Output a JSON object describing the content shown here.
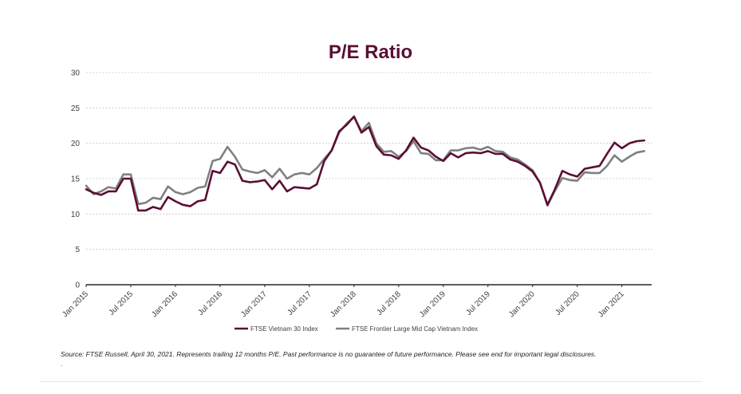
{
  "chart_data": {
    "type": "line",
    "title": "P/E Ratio",
    "xlabel": "",
    "ylabel": "",
    "ylim": [
      0,
      30
    ],
    "yticks": [
      "0",
      "5",
      "10",
      "15",
      "20",
      "25",
      "30"
    ],
    "xticks": [
      "Jan 2015",
      "Jul 2015",
      "Jan 2016",
      "Jul 2016",
      "Jan 2017",
      "Jul 2017",
      "Jan 2018",
      "Jul 2018",
      "Jan 2019",
      "Jul 2019",
      "Jan 2020",
      "Jul 2020",
      "Jan 2021"
    ],
    "grid": "horizontal dashed",
    "legend_position": "bottom",
    "x_start": "Jan 2015",
    "x_end": "Apr 2021",
    "x_frequency": "monthly",
    "series": [
      {
        "name": "FTSE Vietnam 30 Index",
        "color": "#5b0f34",
        "values": [
          13.5,
          13.0,
          12.7,
          13.2,
          13.2,
          15.0,
          15.0,
          10.5,
          10.5,
          11.0,
          10.7,
          12.4,
          11.8,
          11.3,
          11.1,
          11.8,
          12.0,
          16.1,
          15.8,
          17.4,
          17.0,
          14.7,
          14.5,
          14.6,
          14.8,
          13.5,
          14.7,
          13.2,
          13.8,
          13.7,
          13.6,
          14.2,
          17.5,
          19.0,
          21.7,
          22.6,
          23.8,
          21.5,
          22.3,
          19.6,
          18.4,
          18.3,
          17.8,
          19.0,
          20.8,
          19.4,
          19.0,
          18.1,
          17.5,
          18.6,
          18.0,
          18.6,
          18.7,
          18.6,
          18.9,
          18.5,
          18.5,
          17.7,
          17.4,
          16.8,
          16.0,
          14.4,
          11.3,
          13.5,
          16.1,
          15.6,
          15.3,
          16.4,
          16.6,
          16.8,
          18.5,
          20.1,
          19.3,
          20.0,
          20.3,
          20.4
        ]
      },
      {
        "name": "FTSE Frontier Large Mid Cap Vietnam Index",
        "color": "#808080",
        "values": [
          14.0,
          12.8,
          13.2,
          13.8,
          13.6,
          15.6,
          15.6,
          11.4,
          11.6,
          12.3,
          12.1,
          13.9,
          13.1,
          12.8,
          13.1,
          13.7,
          13.9,
          17.5,
          17.8,
          19.5,
          18.1,
          16.3,
          16.0,
          15.8,
          16.2,
          15.2,
          16.4,
          15.0,
          15.6,
          15.8,
          15.6,
          16.5,
          17.8,
          19.0,
          21.5,
          22.8,
          23.7,
          21.7,
          22.9,
          20.0,
          18.8,
          18.9,
          18.1,
          18.9,
          20.3,
          18.6,
          18.5,
          17.6,
          17.6,
          19.0,
          19.0,
          19.3,
          19.4,
          19.1,
          19.5,
          18.9,
          18.8,
          18.0,
          17.7,
          17.0,
          16.2,
          14.4,
          11.2,
          13.3,
          15.1,
          14.8,
          14.7,
          15.9,
          15.8,
          15.8,
          16.8,
          18.3,
          17.4,
          18.1,
          18.7,
          18.9
        ]
      }
    ]
  },
  "footer": {
    "source": "Source: FTSE Russell, April 30, 2021. Represents trailing 12 months P/E. Past performance is no guarantee of future performance. Please see end for important legal disclosures.",
    "dot": "."
  }
}
